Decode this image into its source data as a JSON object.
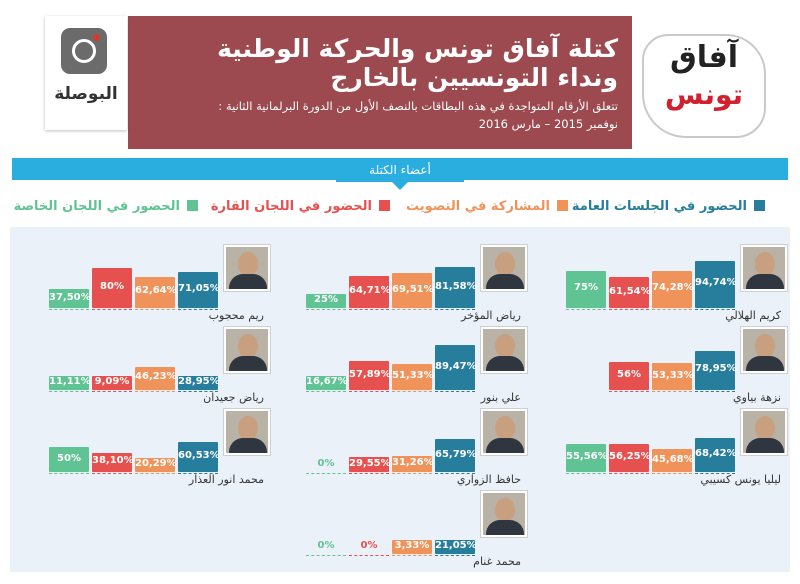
{
  "header": {
    "title_line1": "كتلة آفاق تونس والحركة الوطنية",
    "title_line2": "ونداء التونسيين بالخارج",
    "subtitle_line1": "تتعلق الأرقام المتواجدة في هذه البطاقات بالنصف الأول من الدورة البرلمانية الثانية :",
    "subtitle_line2": "نوفمبر 2015 – مارس 2016",
    "left_logo_text": "البوصلة",
    "right_logo_line1": "آفاق",
    "right_logo_line2": "تونس"
  },
  "band": {
    "label": "أعضاء الكتلة"
  },
  "colors": {
    "plenary": "#277e9c",
    "voting": "#f0935a",
    "standing": "#e6504e",
    "special": "#5fc393",
    "maroon": "#9c4a4f",
    "band": "#29aedf"
  },
  "legend": [
    {
      "key": "plenary",
      "label": "الحضور في الجلسات العامة"
    },
    {
      "key": "voting",
      "label": "المشاركة في التصويت"
    },
    {
      "key": "standing",
      "label": "الحضور في اللجان القارة"
    },
    {
      "key": "special",
      "label": "الحضور في اللجان الخاصة"
    }
  ],
  "chart_data": {
    "type": "bar",
    "value_unit": "%",
    "ylim": [
      0,
      100
    ],
    "series_keys": [
      "plenary",
      "voting",
      "standing",
      "special"
    ],
    "series": [
      {
        "key": "plenary",
        "name": "الحضور في الجلسات العامة"
      },
      {
        "key": "voting",
        "name": "المشاركة في التصويت"
      },
      {
        "key": "standing",
        "name": "الحضور في اللجان القارة"
      },
      {
        "key": "special",
        "name": "الحضور في اللجان الخاصة"
      }
    ],
    "members": [
      {
        "name": "كريم الهلالي",
        "values": [
          94.74,
          74.28,
          61.54,
          75
        ],
        "labels": [
          "94,74%",
          "74,28%",
          "61,54%",
          "75%"
        ]
      },
      {
        "name": "نزهة بياوي",
        "values": [
          78.95,
          53.33,
          56,
          0
        ],
        "labels": [
          "78,95%",
          "53,33%",
          "56%",
          ""
        ]
      },
      {
        "name": "ليليا يونس كسيبي",
        "values": [
          68.42,
          45.68,
          56.25,
          55.56
        ],
        "labels": [
          "68,42%",
          "45,68%",
          "56,25%",
          "55,56%"
        ]
      },
      {
        "name": "رياض المؤخر",
        "values": [
          81.58,
          69.51,
          64.71,
          25
        ],
        "labels": [
          "81,58%",
          "69,51%",
          "64,71%",
          "25%"
        ]
      },
      {
        "name": "علي بنور",
        "values": [
          89.47,
          51.33,
          57.89,
          16.67
        ],
        "labels": [
          "89,47%",
          "51,33%",
          "57,89%",
          "16,67%"
        ]
      },
      {
        "name": "حافظ الزواري",
        "values": [
          65.79,
          31.26,
          29.55,
          0
        ],
        "labels": [
          "65,79%",
          "31,26%",
          "29,55%",
          "0%"
        ]
      },
      {
        "name": "محمد غنام",
        "values": [
          21.05,
          3.33,
          0,
          0
        ],
        "labels": [
          "21,05%",
          "3,33%",
          "0%",
          "0%"
        ]
      },
      {
        "name": "ريم محجوب",
        "values": [
          71.05,
          62.64,
          80,
          37.5
        ],
        "labels": [
          "71,05%",
          "62,64%",
          "80%",
          "37,50%"
        ]
      },
      {
        "name": "رياض جعيدان",
        "values": [
          28.95,
          46.23,
          9.09,
          11.11
        ],
        "labels": [
          "28,95%",
          "46,23%",
          "9,09%",
          "11,11%"
        ]
      },
      {
        "name": "محمد انور العذار",
        "values": [
          60.53,
          20.29,
          38.1,
          50
        ],
        "labels": [
          "60,53%",
          "20,29%",
          "38,10%",
          "50%"
        ]
      }
    ]
  }
}
